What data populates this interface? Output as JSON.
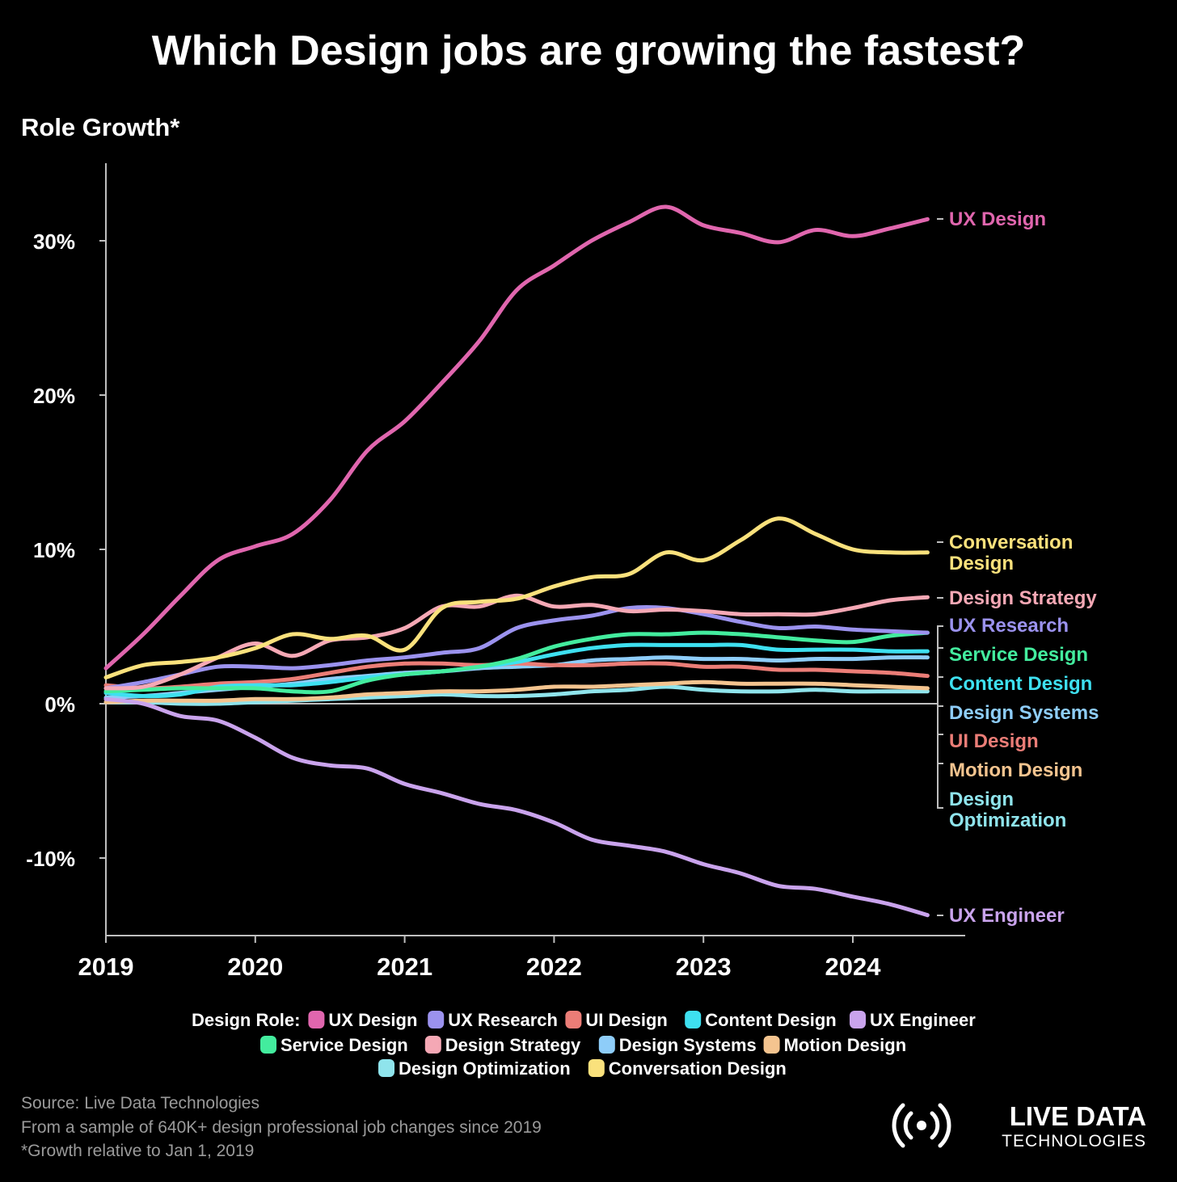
{
  "chart_data": {
    "type": "line",
    "title": "Which Design jobs are growing the fastest?",
    "ylabel": "Role Growth*",
    "xlabel": "",
    "xlim": [
      2019,
      2024.75
    ],
    "ylim": [
      -15,
      35
    ],
    "xticks": [
      {
        "value": 2019,
        "label": "2019"
      },
      {
        "value": 2020,
        "label": "2020"
      },
      {
        "value": 2021,
        "label": "2021"
      },
      {
        "value": 2022,
        "label": "2022"
      },
      {
        "value": 2023,
        "label": "2023"
      },
      {
        "value": 2024,
        "label": "2024"
      }
    ],
    "yticks": [
      {
        "value": 30,
        "label": "30%"
      },
      {
        "value": 20,
        "label": "20%"
      },
      {
        "value": 10,
        "label": "10%"
      },
      {
        "value": 0,
        "label": "0%"
      },
      {
        "value": -10,
        "label": "-10%"
      }
    ],
    "grid": false,
    "legend_position": "bottom",
    "legend_title": "Design Role:",
    "x": [
      2019.0,
      2019.25,
      2019.5,
      2019.75,
      2020.0,
      2020.25,
      2020.5,
      2020.75,
      2021.0,
      2021.25,
      2021.5,
      2021.75,
      2022.0,
      2022.25,
      2022.5,
      2022.75,
      2023.0,
      2023.25,
      2023.5,
      2023.75,
      2024.0,
      2024.25,
      2024.5
    ],
    "series": [
      {
        "name": "UX Design",
        "color": "#e066ae",
        "values": [
          2.3,
          4.5,
          7.0,
          9.3,
          10.2,
          11.0,
          13.2,
          16.4,
          18.3,
          20.8,
          23.5,
          26.8,
          28.4,
          30.0,
          31.2,
          32.2,
          31.0,
          30.5,
          29.9,
          30.7,
          30.3,
          30.8,
          31.4
        ],
        "label_lines": [
          "UX Design"
        ]
      },
      {
        "name": "UX Research",
        "color": "#9b92ee",
        "values": [
          1.0,
          1.4,
          1.9,
          2.4,
          2.4,
          2.3,
          2.5,
          2.8,
          3.0,
          3.3,
          3.6,
          4.9,
          5.4,
          5.7,
          6.2,
          6.2,
          5.8,
          5.3,
          4.9,
          5.0,
          4.8,
          4.7,
          4.6
        ],
        "label_lines": [
          "UX Research"
        ]
      },
      {
        "name": "UI Design",
        "color": "#eb7d77",
        "values": [
          1.2,
          1.0,
          1.1,
          1.3,
          1.4,
          1.6,
          2.0,
          2.4,
          2.6,
          2.6,
          2.5,
          2.6,
          2.5,
          2.5,
          2.6,
          2.6,
          2.4,
          2.4,
          2.2,
          2.2,
          2.1,
          2.0,
          1.8
        ],
        "label_lines": [
          "UI Design"
        ]
      },
      {
        "name": "Content Design",
        "color": "#3ee0f0",
        "values": [
          0.7,
          0.5,
          0.6,
          1.1,
          1.2,
          1.2,
          1.4,
          1.7,
          1.9,
          2.1,
          2.4,
          2.7,
          3.2,
          3.6,
          3.8,
          3.8,
          3.8,
          3.8,
          3.5,
          3.5,
          3.5,
          3.4,
          3.4
        ],
        "label_lines": [
          "Content Design"
        ]
      },
      {
        "name": "UX Engineer",
        "color": "#c9a3ec",
        "values": [
          0.3,
          0.0,
          -0.8,
          -1.1,
          -2.2,
          -3.5,
          -4.0,
          -4.2,
          -5.2,
          -5.8,
          -6.5,
          -6.9,
          -7.7,
          -8.8,
          -9.2,
          -9.6,
          -10.4,
          -11.0,
          -11.8,
          -12.0,
          -12.5,
          -13.0,
          -13.7
        ],
        "label_lines": [
          "UX Engineer"
        ]
      },
      {
        "name": "Service Design",
        "color": "#43ec9e",
        "values": [
          0.8,
          0.9,
          1.0,
          1.0,
          1.0,
          0.8,
          0.8,
          1.5,
          1.9,
          2.1,
          2.4,
          2.9,
          3.7,
          4.2,
          4.5,
          4.5,
          4.6,
          4.5,
          4.3,
          4.1,
          4.0,
          4.4,
          4.6
        ],
        "label_lines": [
          "Service Design"
        ]
      },
      {
        "name": "Design Strategy",
        "color": "#f5a8b5",
        "values": [
          1.0,
          1.1,
          1.9,
          3.0,
          3.9,
          3.1,
          4.1,
          4.3,
          4.9,
          6.3,
          6.3,
          7.0,
          6.3,
          6.4,
          6.0,
          6.1,
          6.0,
          5.8,
          5.8,
          5.8,
          6.2,
          6.7,
          6.9
        ],
        "label_lines": [
          "Design Strategy"
        ]
      },
      {
        "name": "Design Systems",
        "color": "#8ecdf9",
        "values": [
          0.4,
          0.5,
          0.7,
          0.9,
          1.1,
          1.3,
          1.6,
          1.8,
          2.0,
          2.1,
          2.3,
          2.4,
          2.5,
          2.8,
          2.9,
          3.0,
          2.9,
          2.9,
          2.8,
          2.9,
          2.9,
          3.0,
          3.0
        ],
        "label_lines": [
          "Design Systems"
        ]
      },
      {
        "name": "Motion Design",
        "color": "#f4c48f",
        "values": [
          0.1,
          0.2,
          0.2,
          0.2,
          0.3,
          0.3,
          0.4,
          0.6,
          0.7,
          0.8,
          0.8,
          0.9,
          1.1,
          1.1,
          1.2,
          1.3,
          1.4,
          1.3,
          1.3,
          1.3,
          1.2,
          1.1,
          1.0
        ],
        "label_lines": [
          "Motion Design"
        ]
      },
      {
        "name": "Design Optimization",
        "color": "#8fe4ec",
        "values": [
          0.1,
          0.1,
          0.0,
          0.0,
          0.1,
          0.2,
          0.3,
          0.4,
          0.5,
          0.6,
          0.5,
          0.5,
          0.6,
          0.8,
          0.9,
          1.1,
          0.9,
          0.8,
          0.8,
          0.9,
          0.8,
          0.8,
          0.8
        ],
        "label_lines": [
          "Design",
          "Optimization"
        ]
      },
      {
        "name": "Conversation Design",
        "color": "#fae17c",
        "values": [
          1.7,
          2.5,
          2.7,
          3.0,
          3.6,
          4.5,
          4.2,
          4.4,
          3.5,
          6.2,
          6.6,
          6.8,
          7.6,
          8.2,
          8.4,
          9.8,
          9.3,
          10.6,
          12.0,
          11.0,
          10.0,
          9.8,
          9.8
        ],
        "label_lines": [
          "Conversation",
          "Design"
        ]
      }
    ],
    "legend_rows": [
      [
        "UX Design",
        "UX Research",
        "UI Design",
        "Content Design",
        "UX Engineer"
      ],
      [
        "Service Design",
        "Design Strategy",
        "Design Systems",
        "Motion Design"
      ],
      [
        "Design Optimization",
        "Conversation Design"
      ]
    ]
  },
  "footer": {
    "source": "Source: Live Data Technologies",
    "sample": "From a sample of 640K+ design professional job changes since 2019",
    "note": "*Growth relative to Jan 1, 2019"
  },
  "logo": {
    "line1": "LIVE DATA",
    "line2": "TECHNOLOGIES"
  },
  "colors": {
    "background": "#000000",
    "axis": "#bfbfbf",
    "text": "#ffffff",
    "footer_text": "#9a9a9a"
  }
}
